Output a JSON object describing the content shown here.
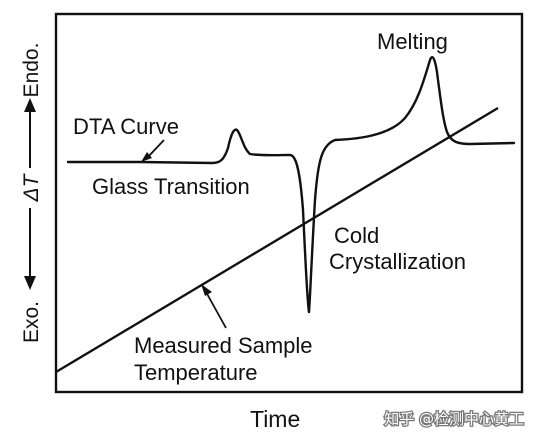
{
  "figure": {
    "y_axis": {
      "top_label": "Endo.",
      "middle_label": "ΔT",
      "bottom_label": "Exo."
    },
    "x_axis": {
      "label": "Time"
    },
    "annotations": {
      "melting": "Melting",
      "dta_curve": "DTA Curve",
      "glass_transition": "Glass Transition",
      "cold_line1": "Cold",
      "cold_line2": "Crystallization",
      "measured_line1": "Measured Sample",
      "measured_line2": "Temperature"
    },
    "watermark": "知乎 @检测中心黄工"
  },
  "colors": {
    "ink": "#111111",
    "background": "#ffffff"
  }
}
